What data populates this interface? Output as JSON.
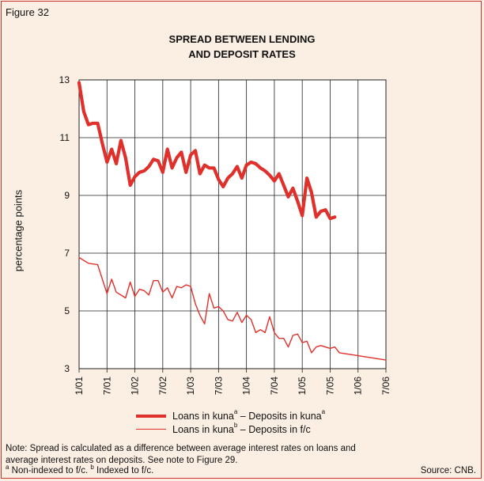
{
  "figure_label": "Figure 32",
  "note": "Note: Spread is calculated as a difference between average interest rates on loans and average interest rates on deposits. See note to Figure 29.",
  "footnote": {
    "a_mark": "a",
    "a_text": " Non-indexed to f/c. ",
    "b_mark": "b",
    "b_text": " Indexed to f/c."
  },
  "source": "Source: CNB.",
  "colors": {
    "series1": "#e0302b",
    "series2": "#e0302b",
    "grid": "#222222",
    "background": "#fbeee3"
  },
  "legend": {
    "s1": {
      "part1": "Loans in kuna",
      "sup1": "a",
      "part2": " – Deposits in kuna",
      "sup2": "a"
    },
    "s2": {
      "part1": "Loans in kuna",
      "sup1": "b",
      "part2": " – Deposits in f/c"
    }
  },
  "chart_data": {
    "type": "line",
    "title_line1": "SPREAD BETWEEN LENDING",
    "title_line2": "AND DEPOSIT RATES",
    "ylabel": "percentage points",
    "ylim": [
      3,
      13
    ],
    "yticks": [
      3,
      5,
      7,
      9,
      11,
      13
    ],
    "grid": true,
    "x_labels": [
      "1/01",
      "7/01",
      "1/02",
      "7/02",
      "1/03",
      "7/03",
      "1/04",
      "7/04",
      "1/05",
      "7/05",
      "1/06",
      "7/06"
    ],
    "x_count": 67,
    "series": [
      {
        "name": "Loans in kunaᵃ – Deposits in kunaᵃ",
        "values": [
          12.9,
          11.9,
          11.45,
          11.5,
          11.5,
          10.8,
          10.15,
          10.6,
          10.1,
          10.9,
          10.3,
          9.35,
          9.65,
          9.8,
          9.85,
          10.0,
          10.25,
          10.2,
          9.8,
          10.6,
          9.95,
          10.3,
          10.5,
          9.8,
          10.4,
          10.55,
          9.75,
          10.05,
          9.95,
          9.95,
          9.55,
          9.3,
          9.6,
          9.75,
          10.0,
          9.6,
          10.05,
          10.15,
          10.1,
          9.95,
          9.85,
          9.7,
          9.5,
          9.75,
          9.35,
          8.95,
          9.25,
          8.8,
          8.3,
          9.6,
          9.1,
          8.25,
          8.45,
          8.5,
          8.2,
          8.25
        ],
        "x_index": [
          0,
          1,
          2,
          3,
          4,
          5,
          6,
          7,
          8,
          9,
          10,
          11,
          12,
          13,
          14,
          15,
          16,
          17,
          18,
          19,
          20,
          21,
          22,
          23,
          24,
          25,
          26,
          27,
          28,
          29,
          30,
          31,
          32,
          33,
          34,
          35,
          36,
          37,
          38,
          39,
          40,
          41,
          42,
          43,
          44,
          45,
          46,
          47,
          48,
          49,
          50,
          51,
          52,
          53,
          54,
          55
        ]
      },
      {
        "name": "Loans in kunaᵇ – Deposits in f/c",
        "values": [
          6.85,
          6.65,
          6.6,
          5.6,
          6.1,
          5.65,
          5.55,
          5.45,
          6.0,
          5.5,
          5.75,
          5.7,
          5.55,
          6.05,
          6.05,
          5.65,
          5.8,
          5.45,
          5.85,
          5.8,
          5.9,
          5.85,
          5.25,
          4.85,
          4.55,
          5.6,
          5.1,
          5.15,
          5.0,
          4.7,
          4.65,
          4.95,
          4.6,
          4.85,
          4.7,
          4.25,
          4.35,
          4.25,
          4.8,
          4.25,
          4.05,
          4.05,
          3.75,
          4.15,
          4.2,
          3.9,
          3.95,
          3.55,
          3.75,
          3.8,
          3.75,
          3.7,
          3.75,
          3.55,
          3.3
        ],
        "x_index": [
          0,
          2,
          4,
          6,
          7,
          8,
          9,
          10,
          11,
          12,
          13,
          14,
          15,
          16,
          17,
          18,
          19,
          20,
          21,
          22,
          23,
          24,
          25,
          26,
          27,
          28,
          29,
          30,
          31,
          32,
          33,
          34,
          35,
          36,
          37,
          38,
          39,
          40,
          41,
          42,
          43,
          44,
          45,
          46,
          47,
          48,
          49,
          50,
          51,
          52,
          53,
          54,
          55,
          56,
          66
        ]
      }
    ]
  }
}
